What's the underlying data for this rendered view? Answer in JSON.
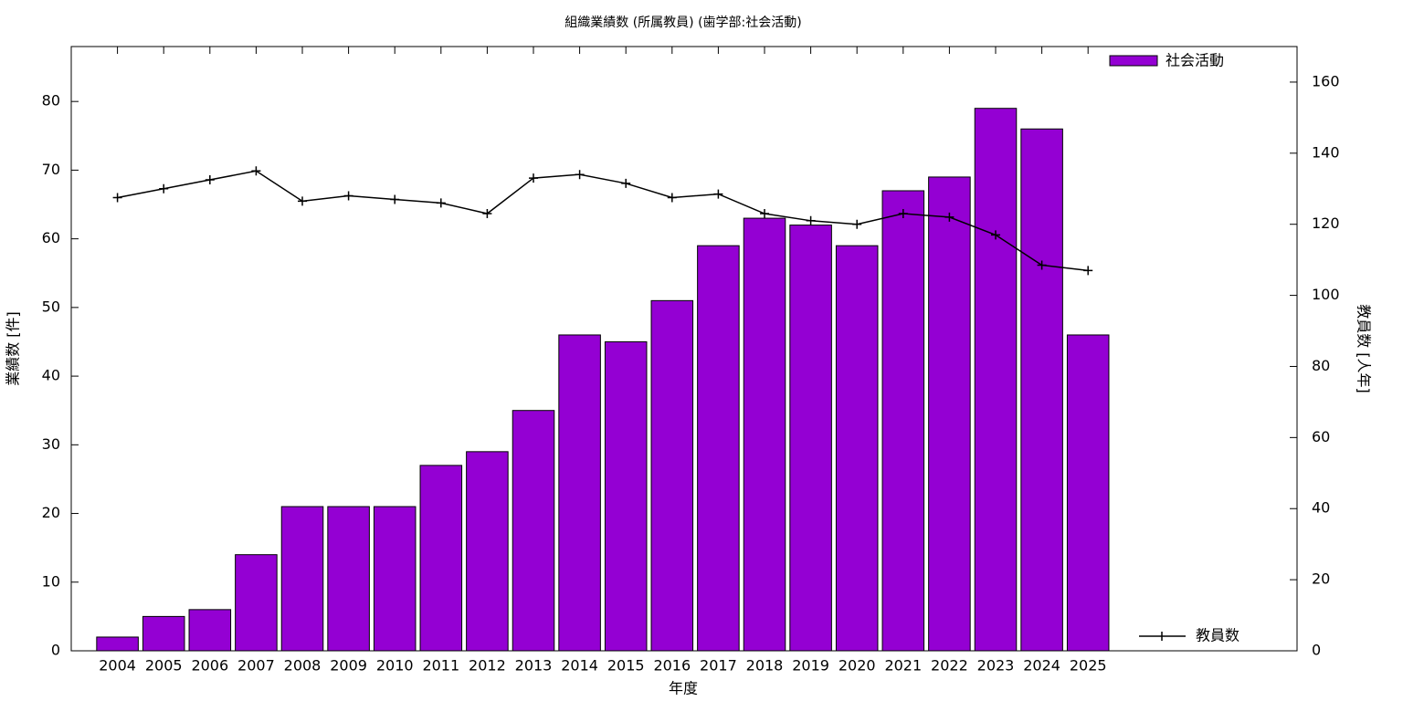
{
  "chart_data": {
    "type": "bar",
    "title": "組織業績数 (所属教員) (歯学部:社会活動)",
    "xlabel": "年度",
    "ylabel": "業績数 [件]",
    "y2label": "教員数 [人年]",
    "categories": [
      "2004",
      "2005",
      "2006",
      "2007",
      "2008",
      "2009",
      "2010",
      "2011",
      "2012",
      "2013",
      "2014",
      "2015",
      "2016",
      "2017",
      "2018",
      "2019",
      "2020",
      "2021",
      "2022",
      "2023",
      "2024",
      "2025"
    ],
    "series": [
      {
        "name": "社会活動",
        "type": "bar",
        "color": "#9400d3",
        "values": [
          2,
          5,
          6,
          14,
          21,
          21,
          21,
          27,
          29,
          35,
          46,
          45,
          51,
          59,
          63,
          62,
          59,
          67,
          69,
          79,
          76,
          46
        ]
      },
      {
        "name": "教員数",
        "type": "line",
        "axis": "y2",
        "color": "#000000",
        "values": [
          127.5,
          130,
          132.5,
          135,
          126.5,
          128,
          127,
          126,
          123,
          133,
          134,
          131.5,
          127.5,
          128.5,
          123,
          121,
          120,
          123,
          122,
          117,
          108.5,
          107
        ]
      }
    ],
    "ylim": [
      0,
      88
    ],
    "yticks": [
      0,
      10,
      20,
      30,
      40,
      50,
      60,
      70,
      80
    ],
    "y2lim": [
      0,
      170
    ],
    "y2ticks": [
      0,
      20,
      40,
      60,
      80,
      100,
      120,
      140,
      160
    ],
    "grid": false
  }
}
